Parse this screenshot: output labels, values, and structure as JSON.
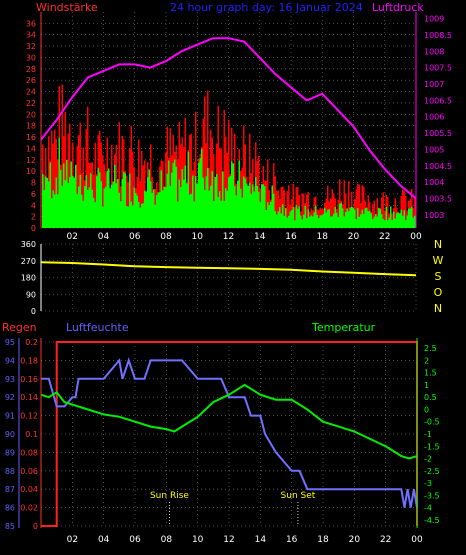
{
  "colors": {
    "background": "#000000",
    "grid": "#808080",
    "wind": "#ff0000",
    "gust": "#00ff00",
    "pressure": "#ff00ff",
    "direction": "#ffff00",
    "humidity": "#7070ff",
    "temperature": "#00ee00",
    "rain": "#ff2020",
    "title": "#2020ff",
    "axis_red": "#ff3030",
    "axis_blue": "#6060ff",
    "axis_green": "#00ff00",
    "compass": "#ffff00"
  },
  "chart_data": [
    {
      "type": "bar",
      "title": "24 hour graph day: 16 Januar 2024",
      "ylabel_left": "Windstärke",
      "ylabel_right": "Luftdruck",
      "x_ticks": [
        "02",
        "04",
        "06",
        "08",
        "10",
        "12",
        "14",
        "16",
        "18",
        "20",
        "22",
        "00"
      ],
      "left_ylim": [
        0,
        38
      ],
      "left_ticks": [
        "0",
        "2",
        "4",
        "6",
        "8",
        "10",
        "12",
        "14",
        "16",
        "18",
        "20",
        "22",
        "24",
        "26",
        "28",
        "30",
        "32",
        "34",
        "36"
      ],
      "right_ylim": [
        1002.6,
        1009.2
      ],
      "right_ticks": [
        "1003",
        "1003.5",
        "1004",
        "1004.5",
        "1005",
        "1005.5",
        "1006",
        "1006.5",
        "1007",
        "1007.5",
        "1008",
        "1008.5",
        "1009"
      ],
      "grid": true,
      "series": [
        {
          "name": "wind_gust",
          "hours": [
            1,
            2,
            3,
            4,
            5,
            6,
            7,
            8,
            9,
            10,
            11,
            12,
            13,
            14,
            15,
            16,
            17,
            18,
            19,
            20,
            21,
            22,
            23,
            24
          ],
          "values": [
            22,
            26,
            22,
            18,
            20,
            20,
            18,
            17,
            19,
            21,
            26,
            23,
            19,
            17,
            13,
            10,
            8,
            8,
            8,
            10,
            8,
            7,
            7,
            7
          ]
        },
        {
          "name": "wind_mean",
          "hours": [
            1,
            2,
            3,
            4,
            5,
            6,
            7,
            8,
            9,
            10,
            11,
            12,
            13,
            14,
            15,
            16,
            17,
            18,
            19,
            20,
            21,
            22,
            23,
            24
          ],
          "values": [
            10,
            12,
            9,
            8,
            9,
            8,
            8,
            8,
            9,
            10,
            11,
            10,
            9,
            8,
            6,
            4,
            3,
            3,
            3,
            4,
            3,
            3,
            3,
            3
          ]
        },
        {
          "name": "pressure",
          "hours": [
            0,
            1,
            2,
            3,
            4,
            5,
            6,
            7,
            8,
            9,
            10,
            11,
            12,
            13,
            14,
            15,
            16,
            17,
            18,
            19,
            20,
            21,
            22,
            23,
            24
          ],
          "values": [
            1005.3,
            1005.9,
            1006.6,
            1007.2,
            1007.4,
            1007.6,
            1007.6,
            1007.5,
            1007.7,
            1008.0,
            1008.2,
            1008.4,
            1008.4,
            1008.3,
            1007.8,
            1007.3,
            1006.9,
            1006.5,
            1006.7,
            1006.2,
            1005.7,
            1005.0,
            1004.4,
            1003.9,
            1003.5
          ]
        }
      ]
    },
    {
      "type": "line",
      "ylim": [
        0,
        360
      ],
      "left_ticks": [
        "0",
        "90",
        "180",
        "270",
        "360"
      ],
      "compass_labels": [
        "N",
        "W",
        "S",
        "O",
        "N"
      ],
      "grid": true,
      "series": [
        {
          "name": "wind_direction",
          "hours": [
            0,
            2,
            4,
            6,
            8,
            10,
            12,
            14,
            16,
            18,
            20,
            22,
            24
          ],
          "values": [
            262,
            258,
            250,
            240,
            236,
            232,
            230,
            226,
            222,
            212,
            206,
            198,
            192
          ]
        }
      ]
    },
    {
      "type": "line",
      "ylabel_left_1": "Regen",
      "ylabel_left_2": "Luftfeuchte",
      "ylabel_right": "Temperatur",
      "humidity_ticks": [
        "85",
        "86",
        "87",
        "88",
        "89",
        "90",
        "91",
        "92",
        "93",
        "94",
        "95"
      ],
      "humidity_ylim": [
        85,
        95
      ],
      "rain_ticks": [
        "0",
        "0.02",
        "0.04",
        "0.06",
        "0.08",
        "0.1",
        "0.12",
        "0.14",
        "0.16",
        "0.18",
        "0.2"
      ],
      "rain_ylim": [
        0,
        0.2
      ],
      "temperature_ticks": [
        "-4.5",
        "-4",
        "-3.5",
        "-3",
        "-2.5",
        "-2",
        "-1.5",
        "-1",
        "-0.5",
        "0",
        "0.5",
        "1",
        "1.5",
        "2",
        "2.5"
      ],
      "temperature_ylim": [
        -4.75,
        2.75
      ],
      "annotations": [
        "Sun Rise",
        "Sun Set"
      ],
      "sun_rise_hour": 8.2,
      "sun_set_hour": 16.4,
      "grid": true,
      "series": [
        {
          "name": "humidity",
          "hours": [
            0,
            0.5,
            1,
            1.5,
            2,
            2.2,
            2.4,
            3,
            3.3,
            4,
            5,
            5.2,
            5.6,
            6,
            6.4,
            6.6,
            7,
            7.5,
            8,
            9,
            10,
            11,
            11.5,
            12,
            13,
            13.4,
            14,
            14.3,
            15,
            16,
            16.5,
            17,
            18,
            19,
            20,
            21,
            22,
            23,
            23.2,
            23.4,
            23.6,
            23.8,
            24
          ],
          "values": [
            93,
            93,
            91.5,
            91.5,
            92,
            92,
            93,
            93,
            93,
            93,
            94,
            93,
            94,
            93,
            93,
            93,
            94,
            94,
            94,
            94,
            93,
            93,
            93,
            92,
            92,
            91,
            91,
            90,
            89,
            88,
            88,
            87,
            87,
            87,
            87,
            87,
            87,
            87,
            86,
            87,
            86,
            87,
            86
          ]
        },
        {
          "name": "temperature",
          "hours": [
            0,
            0.5,
            1,
            1.5,
            2,
            3,
            4,
            5,
            6,
            7,
            8,
            8.5,
            9,
            10,
            11,
            12,
            12.5,
            13,
            14,
            15,
            16,
            17,
            18,
            19,
            20,
            21,
            22,
            23,
            23.5,
            24
          ],
          "values": [
            0.6,
            0.5,
            0.7,
            0.3,
            0.2,
            0.0,
            -0.2,
            -0.3,
            -0.5,
            -0.7,
            -0.8,
            -0.9,
            -0.7,
            -0.3,
            0.3,
            0.6,
            0.8,
            1.0,
            0.6,
            0.4,
            0.4,
            0.0,
            -0.5,
            -0.7,
            -0.9,
            -1.2,
            -1.5,
            -1.9,
            -2.0,
            -1.9
          ]
        },
        {
          "name": "rain",
          "hours": [
            0,
            1,
            1,
            24,
            24
          ],
          "values": [
            0,
            0,
            0.2,
            0.2,
            0
          ]
        }
      ]
    }
  ]
}
